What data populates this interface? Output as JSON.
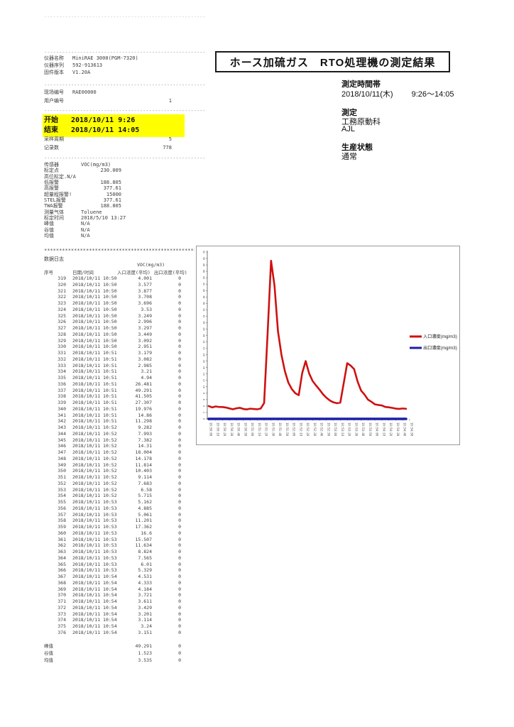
{
  "separators": {
    "dash": "-",
    "asterisk": "*"
  },
  "device_info": {
    "lines": [
      {
        "label": "仪器名称",
        "value": "MiniRAE 3000(PGM-7320)",
        "num": false
      },
      {
        "label": "仪器序列",
        "value": "592-913613",
        "num": false
      },
      {
        "label": "固件版本",
        "value": "V1.20A",
        "num": false
      }
    ]
  },
  "site_info": {
    "lines": [
      {
        "label": "现场编号",
        "value": "RAE00000",
        "num": false
      },
      {
        "label": "用户编号",
        "value": "1",
        "num": true
      }
    ]
  },
  "highlight": {
    "start_label": "开始",
    "start_value": "2018/10/11 9:26",
    "end_label": "结束",
    "end_value": "2018/10/11 14:05"
  },
  "sampling_info": {
    "lines": [
      {
        "label": "采样周期",
        "value": "5",
        "num": true
      },
      {
        "label": "记录数",
        "value": "778",
        "num": true
      }
    ]
  },
  "sensor_info": {
    "lines": [
      {
        "label": "传感器",
        "value": "VOC(mg/m3)",
        "num": false
      },
      {
        "label": "标定点",
        "value": "230.009",
        "num": true
      },
      {
        "label": "高位标定.N/A",
        "value": "",
        "num": false
      },
      {
        "label": "低报警",
        "value": "188.805",
        "num": true
      },
      {
        "label": "高报警",
        "value": "377.61",
        "num": true
      },
      {
        "label": "超量程报警!",
        "value": "15000",
        "num": true
      },
      {
        "label": "STEL报警",
        "value": "377.61",
        "num": true
      },
      {
        "label": "TWA报警",
        "value": "188.805",
        "num": true
      },
      {
        "label": "测量气体",
        "value": "Toluene",
        "num": false
      },
      {
        "label": "标定时间",
        "value": "2018/5/10 13:27",
        "num": false
      },
      {
        "label": "峰值",
        "value": "N/A",
        "num": false
      },
      {
        "label": "谷值",
        "value": "N/A",
        "num": false
      },
      {
        "label": "均值",
        "value": "N/A",
        "num": false
      }
    ]
  },
  "header_box": {
    "title": "ホース加硫ガス　RTO処理機の測定結果"
  },
  "measurement_meta": {
    "time_band_label": "測定時間帯",
    "date": "2018/10/11(木)",
    "time_range": "9:26～14:05",
    "measurer_label": "測定",
    "department": "工務原動科",
    "person": "AJL",
    "production_label": "生産状態",
    "production_value": "通常"
  },
  "datalog": {
    "section_title": "数据日志",
    "voc_header": "VOC(mg/m3)",
    "col_no": "序号",
    "col_datetime": "日期/时间",
    "col_inlet": "入口浓度(平均)",
    "col_outlet": "出口浓度(平均)",
    "date_prefix": "2018/10/11",
    "rows": [
      [
        319,
        "10:50",
        "4.001",
        "0"
      ],
      [
        320,
        "10:50",
        "3.577",
        "0"
      ],
      [
        321,
        "10:50",
        "3.877",
        "0"
      ],
      [
        322,
        "10:50",
        "3.708",
        "0"
      ],
      [
        323,
        "10:50",
        "3.696",
        "0"
      ],
      [
        324,
        "10:50",
        "3.53",
        "0"
      ],
      [
        325,
        "10:50",
        "3.249",
        "0"
      ],
      [
        326,
        "10:50",
        "2.996",
        "0"
      ],
      [
        327,
        "10:50",
        "3.297",
        "0"
      ],
      [
        328,
        "10:50",
        "3.449",
        "0"
      ],
      [
        329,
        "10:50",
        "3.092",
        "0"
      ],
      [
        330,
        "10:50",
        "2.951",
        "0"
      ],
      [
        331,
        "10:51",
        "3.179",
        "0"
      ],
      [
        332,
        "10:51",
        "3.082",
        "0"
      ],
      [
        333,
        "10:51",
        "2.985",
        "0"
      ],
      [
        334,
        "10:51",
        "3.21",
        "0"
      ],
      [
        335,
        "10:51",
        "4.94",
        "0"
      ],
      [
        336,
        "10:51",
        "26.481",
        "0"
      ],
      [
        337,
        "10:51",
        "49.291",
        "0"
      ],
      [
        338,
        "10:51",
        "41.505",
        "0"
      ],
      [
        339,
        "10:51",
        "27.307",
        "0"
      ],
      [
        340,
        "10:51",
        "19.976",
        "0"
      ],
      [
        341,
        "10:51",
        "14.86",
        "0"
      ],
      [
        342,
        "10:51",
        "11.298",
        "0"
      ],
      [
        343,
        "10:52",
        "9.282",
        "0"
      ],
      [
        344,
        "10:52",
        "7.993",
        "0"
      ],
      [
        345,
        "10:52",
        "7.382",
        "0"
      ],
      [
        346,
        "10:52",
        "14.31",
        "0"
      ],
      [
        347,
        "10:52",
        "18.004",
        "0"
      ],
      [
        348,
        "10:52",
        "14.178",
        "0"
      ],
      [
        349,
        "10:52",
        "11.814",
        "0"
      ],
      [
        350,
        "10:52",
        "10.403",
        "0"
      ],
      [
        351,
        "10:52",
        "9.114",
        "0"
      ],
      [
        352,
        "10:52",
        "7.683",
        "0"
      ],
      [
        353,
        "10:52",
        "6.58",
        "0"
      ],
      [
        354,
        "10:52",
        "5.715",
        "0"
      ],
      [
        355,
        "10:53",
        "5.162",
        "0"
      ],
      [
        356,
        "10:53",
        "4.885",
        "0"
      ],
      [
        357,
        "10:53",
        "5.061",
        "0"
      ],
      [
        358,
        "10:53",
        "11.201",
        "0"
      ],
      [
        359,
        "10:53",
        "17.362",
        "0"
      ],
      [
        360,
        "10:53",
        "16.6",
        "0"
      ],
      [
        361,
        "10:53",
        "15.507",
        "0"
      ],
      [
        362,
        "10:53",
        "11.634",
        "0"
      ],
      [
        363,
        "10:53",
        "8.824",
        "0"
      ],
      [
        364,
        "10:53",
        "7.565",
        "0"
      ],
      [
        365,
        "10:53",
        "6.01",
        "0"
      ],
      [
        366,
        "10:53",
        "5.329",
        "0"
      ],
      [
        367,
        "10:54",
        "4.531",
        "0"
      ],
      [
        368,
        "10:54",
        "4.333",
        "0"
      ],
      [
        369,
        "10:54",
        "4.184",
        "0"
      ],
      [
        370,
        "10:54",
        "3.721",
        "0"
      ],
      [
        371,
        "10:54",
        "3.611",
        "0"
      ],
      [
        372,
        "10:54",
        "3.429",
        "0"
      ],
      [
        373,
        "10:54",
        "3.201",
        "0"
      ],
      [
        374,
        "10:54",
        "3.114",
        "0"
      ],
      [
        375,
        "10:54",
        "3.24",
        "0"
      ],
      [
        376,
        "10:54",
        "3.151",
        "0"
      ]
    ],
    "summary": [
      {
        "label": "峰值",
        "in": "49.291",
        "out": "0"
      },
      {
        "label": "谷值",
        "in": "1.523",
        "out": "0"
      },
      {
        "label": "均值",
        "in": "3.535",
        "out": "0"
      }
    ]
  },
  "chart_data": {
    "type": "line",
    "title": "",
    "xlabel": "",
    "ylabel": "",
    "ylim": [
      0,
      52
    ],
    "y_tick_step": 2,
    "x_start": "10:50:00",
    "x_interval_seconds": 5,
    "x_tick_labels": [
      "10:50:00",
      "10:50:10",
      "10:50:20",
      "10:50:30",
      "10:50:40",
      "10:50:50",
      "10:51:00",
      "10:51:10",
      "10:51:20",
      "10:51:30",
      "10:51:40",
      "10:51:50",
      "10:52:00",
      "10:52:10",
      "10:52:20",
      "10:52:30",
      "10:52:40",
      "10:52:50",
      "10:53:00",
      "10:53:10",
      "10:53:20",
      "10:53:30",
      "10:53:40",
      "10:53:50",
      "10:54:00",
      "10:54:10",
      "10:54:20",
      "10:54:30",
      "10:54:40",
      "10:54:50"
    ],
    "legend_position": "right",
    "grid": false,
    "series": [
      {
        "name": "入口濃度(mg/m3)",
        "color": "#cf1010",
        "values": [
          4.001,
          3.577,
          3.877,
          3.708,
          3.696,
          3.53,
          3.249,
          2.996,
          3.297,
          3.449,
          3.092,
          2.951,
          3.179,
          3.082,
          2.985,
          3.21,
          4.94,
          26.481,
          49.291,
          41.505,
          27.307,
          19.976,
          14.86,
          11.298,
          9.282,
          7.993,
          7.382,
          14.31,
          18.004,
          14.178,
          11.814,
          10.403,
          9.114,
          7.683,
          6.58,
          5.715,
          5.162,
          4.885,
          5.061,
          11.201,
          17.362,
          16.6,
          15.507,
          11.634,
          8.824,
          7.565,
          6.01,
          5.329,
          4.531,
          4.333,
          4.184,
          3.721,
          3.611,
          3.429,
          3.201,
          3.114,
          3.24,
          3.151
        ]
      },
      {
        "name": "出口濃度(mg/m3)",
        "color": "#1d1daa",
        "values": [
          0,
          0,
          0,
          0,
          0,
          0,
          0,
          0,
          0,
          0,
          0,
          0,
          0,
          0,
          0,
          0,
          0,
          0,
          0,
          0,
          0,
          0,
          0,
          0,
          0,
          0,
          0,
          0,
          0,
          0,
          0,
          0,
          0,
          0,
          0,
          0,
          0,
          0,
          0,
          0,
          0,
          0,
          0,
          0,
          0,
          0,
          0,
          0,
          0,
          0,
          0,
          0,
          0,
          0,
          0,
          0,
          0,
          0
        ]
      }
    ]
  }
}
